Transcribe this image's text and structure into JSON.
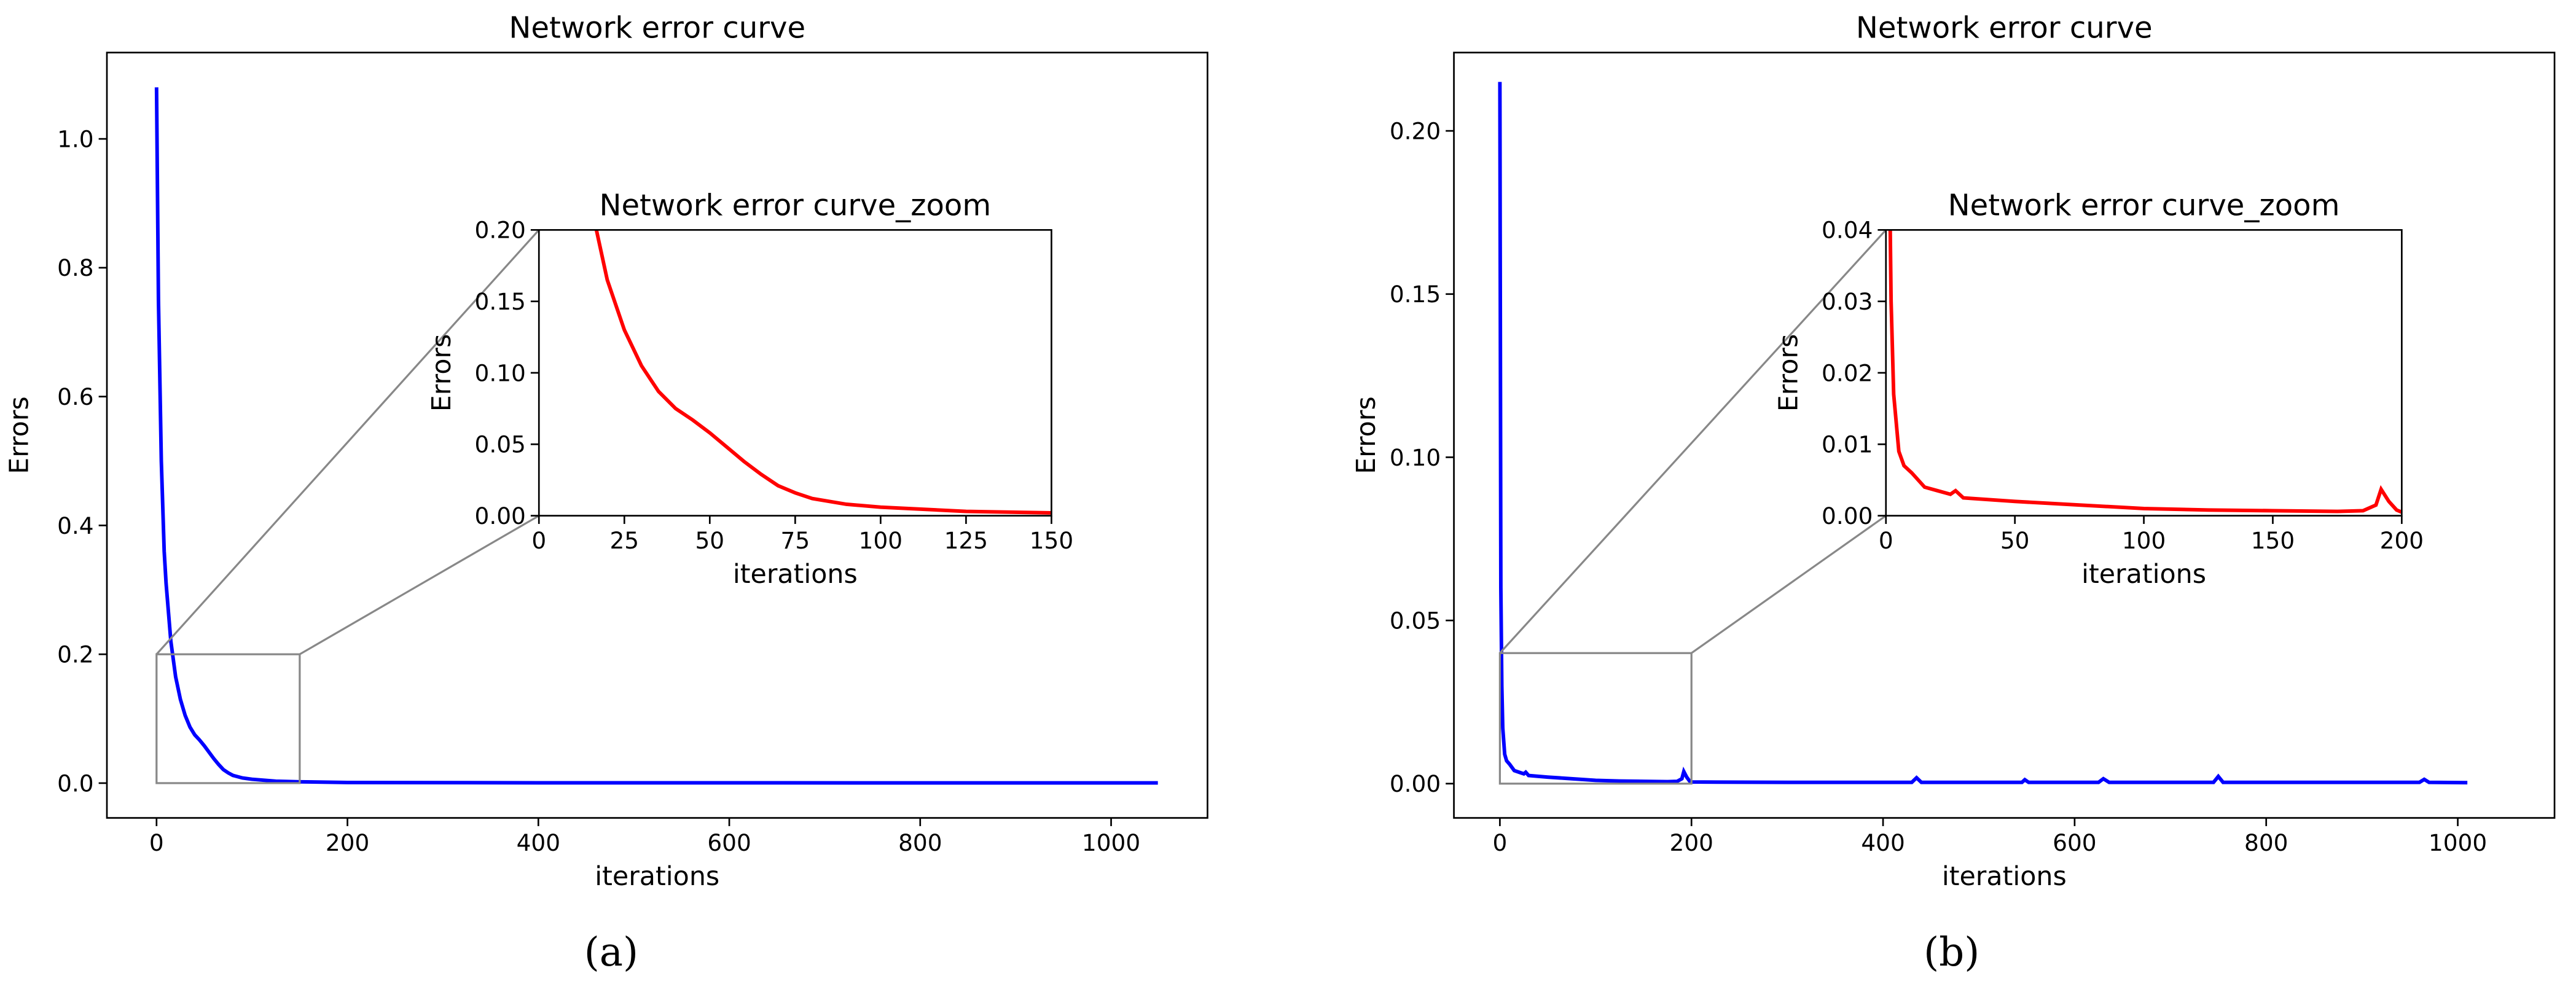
{
  "chart_data": [
    {
      "type": "line",
      "title": "Network error curve",
      "x_label": "iterations",
      "y_label": "Errors",
      "caption": "(a)",
      "x": [
        0,
        2,
        5,
        8,
        10,
        15,
        20,
        25,
        30,
        35,
        40,
        45,
        50,
        55,
        60,
        65,
        70,
        75,
        80,
        90,
        100,
        125,
        150,
        200,
        400,
        1049
      ],
      "series": [
        {
          "color": "#0000ff",
          "values": [
            1.08,
            0.75,
            0.5,
            0.36,
            0.31,
            0.22,
            0.165,
            0.13,
            0.105,
            0.087,
            0.075,
            0.067,
            0.058,
            0.048,
            0.038,
            0.029,
            0.021,
            0.016,
            0.012,
            0.008,
            0.006,
            0.003,
            0.002,
            0.001,
            0.0005,
            0.0003
          ]
        }
      ],
      "xlim": [
        -52,
        1101
      ],
      "ylim": [
        -0.054,
        1.134
      ],
      "xticks": [
        0,
        200,
        400,
        600,
        800,
        1000
      ],
      "yticks": [
        {
          "value": 0,
          "label": "0.0"
        },
        0.2,
        0.4,
        0.6,
        0.8,
        {
          "value": 1,
          "label": "1.0"
        }
      ],
      "inset": {
        "title": "Network error curve_zoom",
        "x_label": "iterations",
        "y_label": "Errors",
        "color": "#ff0000",
        "xlim": [
          0,
          150
        ],
        "ylim": [
          0,
          0.2
        ],
        "xticks": [
          0,
          25,
          50,
          75,
          100,
          125,
          150
        ],
        "yticks": [
          {
            "value": 0,
            "label": "0.00"
          },
          0.05,
          {
            "value": 0.1,
            "label": "0.10"
          },
          0.15,
          {
            "value": 0.2,
            "label": "0.20"
          }
        ]
      }
    },
    {
      "type": "line",
      "title": "Network error curve",
      "x_label": "iterations",
      "y_label": "Errors",
      "caption": "(b)",
      "x": [
        0,
        1,
        2,
        3,
        5,
        7,
        10,
        15,
        20,
        25,
        27,
        30,
        50,
        75,
        100,
        125,
        150,
        175,
        185,
        190,
        192,
        195,
        198,
        200,
        300,
        430,
        435,
        440,
        545,
        548,
        552,
        625,
        630,
        636,
        745,
        750,
        755,
        960,
        965,
        970,
        1010
      ],
      "series": [
        {
          "color": "#0000ff",
          "values": [
            0.215,
            0.06,
            0.03,
            0.017,
            0.009,
            0.007,
            0.006,
            0.004,
            0.0035,
            0.003,
            0.0035,
            0.0025,
            0.002,
            0.0015,
            0.001,
            0.0008,
            0.0007,
            0.0006,
            0.0007,
            0.0015,
            0.0037,
            0.002,
            0.0008,
            0.0005,
            0.0004,
            0.0004,
            0.0018,
            0.0004,
            0.0004,
            0.0012,
            0.0004,
            0.0004,
            0.0015,
            0.0004,
            0.0004,
            0.0022,
            0.0004,
            0.0004,
            0.0013,
            0.0004,
            0.0003
          ]
        }
      ],
      "xlim": [
        -48,
        1101
      ],
      "ylim": [
        -0.0105,
        0.224
      ],
      "xticks": [
        0,
        200,
        400,
        600,
        800,
        1000
      ],
      "yticks": [
        {
          "value": 0,
          "label": "0.00"
        },
        0.05,
        {
          "value": 0.1,
          "label": "0.10"
        },
        0.15,
        {
          "value": 0.2,
          "label": "0.20"
        }
      ],
      "inset": {
        "title": "Network error curve_zoom",
        "x_label": "iterations",
        "y_label": "Errors",
        "color": "#ff0000",
        "xlim": [
          0,
          200
        ],
        "ylim": [
          0,
          0.04
        ],
        "xticks": [
          0,
          50,
          100,
          150,
          200
        ],
        "yticks": [
          {
            "value": 0,
            "label": "0.00"
          },
          0.01,
          0.02,
          0.03,
          {
            "value": 0.04,
            "label": "0.04"
          }
        ]
      }
    }
  ]
}
